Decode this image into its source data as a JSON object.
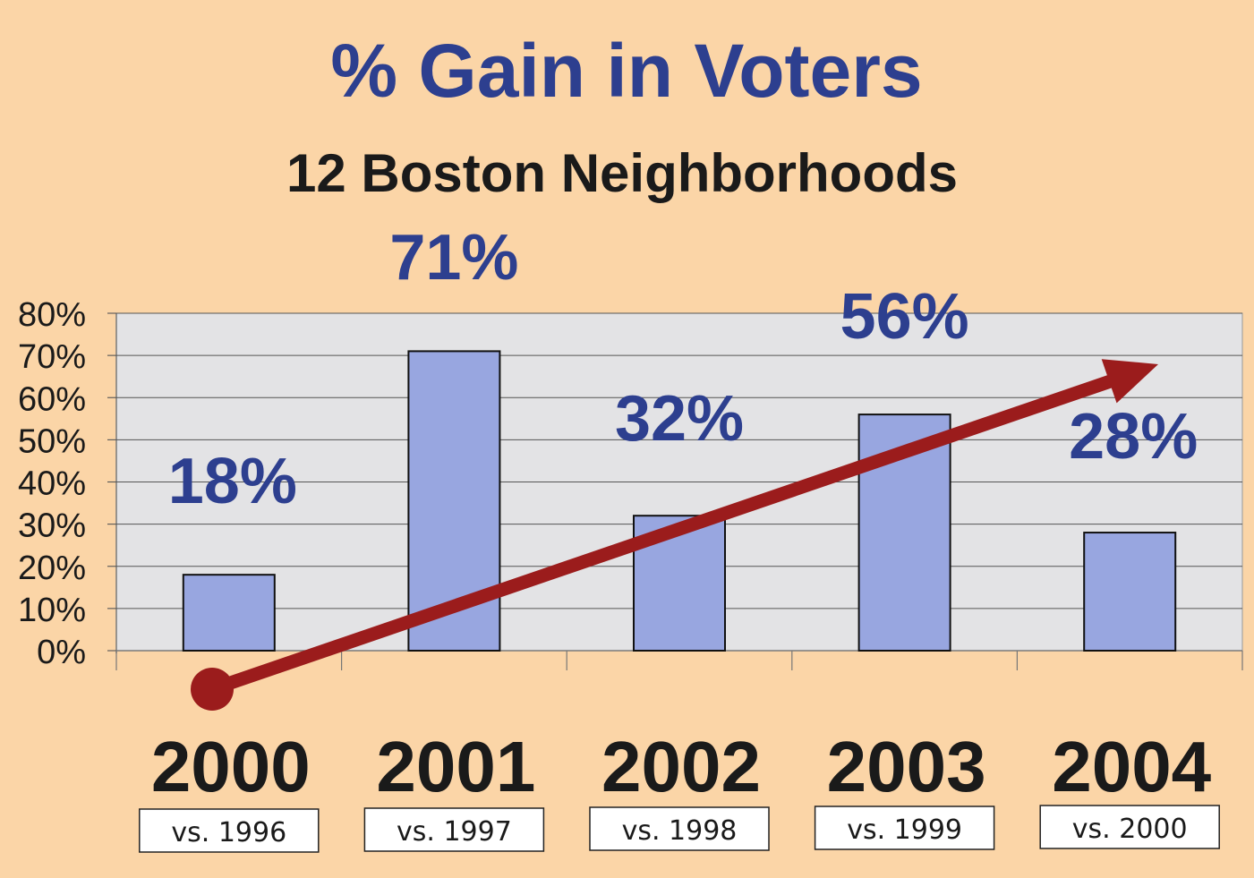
{
  "chart_data": {
    "type": "bar",
    "title": "% Gain in Voters",
    "subtitle": "12 Boston Neighborhoods",
    "categories": [
      "2000",
      "2001",
      "2002",
      "2003",
      "2004"
    ],
    "comparisons": [
      "vs. 1996",
      "vs. 1997",
      "vs. 1998",
      "vs. 1999",
      "vs. 2000"
    ],
    "values": [
      18,
      71,
      32,
      56,
      28
    ],
    "data_labels": [
      "18%",
      "71%",
      "32%",
      "56%",
      "28%"
    ],
    "ylim": [
      0,
      80
    ],
    "yticks": [
      0,
      10,
      20,
      30,
      40,
      50,
      60,
      70,
      80
    ],
    "ytick_labels": [
      "0%",
      "10%",
      "20%",
      "30%",
      "40%",
      "50%",
      "60%",
      "70%",
      "80%"
    ],
    "grid": true,
    "trend_arrow": true,
    "colors": {
      "background": "#fbd5a7",
      "plot_area": "#e3e3e5",
      "bar_fill": "#98a6e0",
      "bar_stroke": "#111111",
      "title": "#2d3f8f",
      "data_label": "#2d3f8f",
      "arrow": "#9b1c1c"
    }
  }
}
